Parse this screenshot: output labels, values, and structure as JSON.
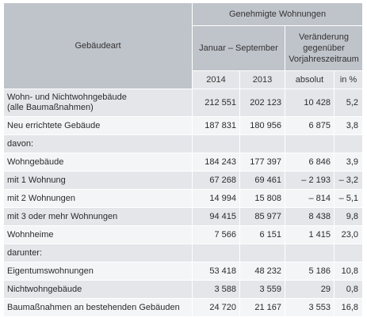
{
  "table": {
    "col_header": "Gebäudeart",
    "group_header": "Genehmigte Wohnungen",
    "period_header": "Januar – September",
    "change_header_line1": "Veränderung",
    "change_header_line2": "gegenüber",
    "change_header_line3": "Vorjahreszeitraum",
    "year_2014": "2014",
    "year_2013": "2013",
    "abs_header": "absolut",
    "pct_header": "in %",
    "rows": [
      {
        "label": "Wohn- und Nichtwohngebäude",
        "label2": "(alle Baumaßnahmen)",
        "v2014": "212 551",
        "v2013": "202 123",
        "abs": "10 428",
        "pct": "5,2"
      },
      {
        "label": "Neu errichtete Gebäude",
        "v2014": "187 831",
        "v2013": "180 956",
        "abs": "6 875",
        "pct": "3,8"
      },
      {
        "label": "davon:",
        "v2014": "",
        "v2013": "",
        "abs": "",
        "pct": ""
      },
      {
        "label": "Wohngebäude",
        "v2014": "184 243",
        "v2013": "177 397",
        "abs": "6 846",
        "pct": "3,9"
      },
      {
        "label": "mit 1 Wohnung",
        "v2014": "67 268",
        "v2013": "69 461",
        "abs": "– 2 193",
        "pct": "– 3,2"
      },
      {
        "label": "mit 2 Wohnungen",
        "v2014": "14 994",
        "v2013": "15 808",
        "abs": "– 814",
        "pct": "– 5,1"
      },
      {
        "label": "mit 3 oder mehr Wohnungen",
        "v2014": "94 415",
        "v2013": "85 977",
        "abs": "8 438",
        "pct": "9,8"
      },
      {
        "label": "Wohnheime",
        "v2014": "7 566",
        "v2013": "6 151",
        "abs": "1 415",
        "pct": "23,0"
      },
      {
        "label": "darunter:",
        "v2014": "",
        "v2013": "",
        "abs": "",
        "pct": ""
      },
      {
        "label": "Eigentumswohnungen",
        "v2014": "53 418",
        "v2013": "48 232",
        "abs": "5 186",
        "pct": "10,8"
      },
      {
        "label": "Nichtwohngebäude",
        "v2014": "3 588",
        "v2013": "3 559",
        "abs": "29",
        "pct": "0,8"
      },
      {
        "label": "Baumaßnahmen an bestehenden Gebäuden",
        "v2014": "24 720",
        "v2013": "21 167",
        "abs": "3 553",
        "pct": "16,8"
      }
    ]
  }
}
